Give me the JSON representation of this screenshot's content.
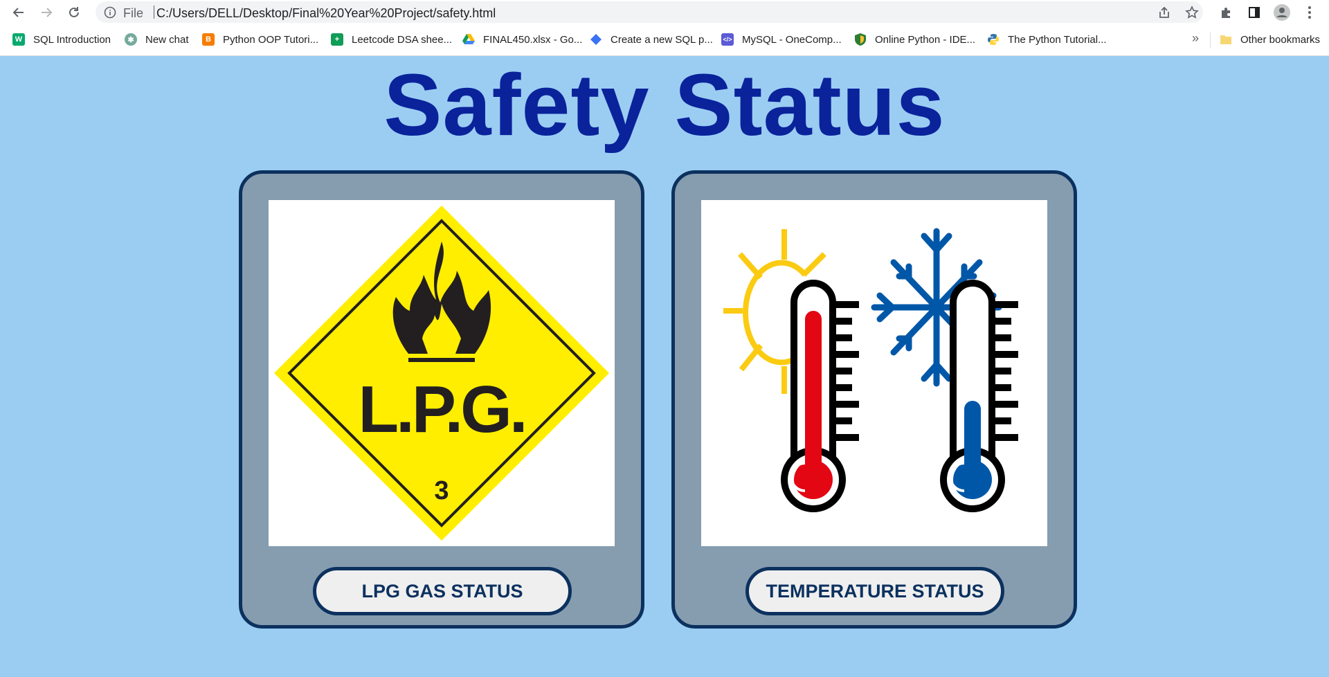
{
  "browser": {
    "url_scheme": "File",
    "url": "C:/Users/DELL/Desktop/Final%20Year%20Project/safety.html",
    "bookmarks": [
      {
        "label": "SQL Introduction",
        "icon": "w3schools-icon",
        "color": "#04aa6d"
      },
      {
        "label": "New chat",
        "icon": "chatgpt-icon",
        "color": "#74aa9c"
      },
      {
        "label": "Python OOP Tutori...",
        "icon": "blogger-icon",
        "color": "#f57d00"
      },
      {
        "label": "Leetcode DSA shee...",
        "icon": "google-sheets-icon",
        "color": "#0f9d58"
      },
      {
        "label": "FINAL450.xlsx - Go...",
        "icon": "google-drive-icon",
        "color": "#fbbc04"
      },
      {
        "label": "Create a new SQL p...",
        "icon": "dbdiagram-icon",
        "color": "#3b73f5"
      },
      {
        "label": "MySQL - OneComp...",
        "icon": "onecompiler-icon",
        "color": "#5b5bd6"
      },
      {
        "label": "Online Python - IDE...",
        "icon": "shield-icon",
        "color": "#2e7d32"
      },
      {
        "label": "The Python Tutorial...",
        "icon": "python-icon",
        "color": "#3776ab"
      }
    ],
    "other_bookmarks": "Other bookmarks"
  },
  "page": {
    "title": "Safety Status",
    "background_color": "#9bcdf3",
    "title_color": "#0a239b"
  },
  "cards": {
    "lpg": {
      "sign_text": "L.P.G.",
      "sign_class": "3",
      "button_label": "LPG GAS STATUS"
    },
    "temperature": {
      "button_label": "TEMPERATURE STATUS"
    }
  },
  "colors": {
    "card_fill": "#869daf",
    "card_border": "#0c315f",
    "hazard_yellow": "#ffee00",
    "hot_red": "#e30613",
    "cold_blue": "#0057a8",
    "sun_yellow": "#fbcb12"
  }
}
